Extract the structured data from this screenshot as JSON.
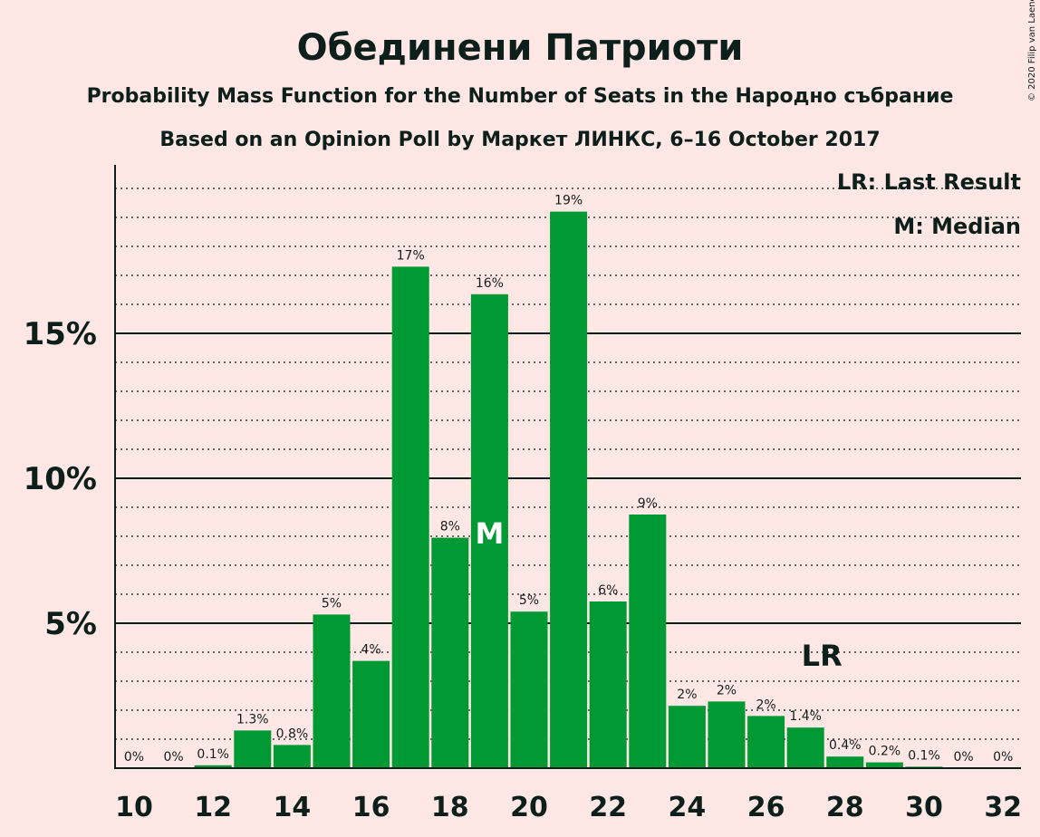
{
  "colors": {
    "background": "#FFE7E6",
    "bar": "#009933",
    "text": "#0d1f1a"
  },
  "chart_data": {
    "type": "bar",
    "title": "Обединени Патриоти",
    "subtitle": "Probability Mass Function for the Number of Seats in the Народно събрание",
    "subtitle2": "Based on an Opinion Poll by Маркет ЛИНКС, 6–16 October 2017",
    "copyright": "© 2020 Filip van Laenen",
    "x": [
      10,
      11,
      12,
      13,
      14,
      15,
      16,
      17,
      18,
      19,
      20,
      21,
      22,
      23,
      24,
      25,
      26,
      27,
      28,
      29,
      30,
      31,
      32
    ],
    "values": [
      0,
      0,
      0.1,
      1.3,
      0.8,
      5.3,
      3.7,
      17.3,
      7.95,
      16.35,
      5.4,
      19.2,
      5.75,
      8.75,
      2.15,
      2.3,
      1.8,
      1.4,
      0.4,
      0.2,
      0.05,
      0,
      0
    ],
    "labels": [
      "0%",
      "0%",
      "0.1%",
      "1.3%",
      "0.8%",
      "5%",
      "4%",
      "17%",
      "8%",
      "16%",
      "5%",
      "19%",
      "6%",
      "9%",
      "2%",
      "2%",
      "2%",
      "1.4%",
      "0.4%",
      "0.2%",
      "0.1%",
      "0%",
      "0%"
    ],
    "x_ticks": [
      10,
      12,
      14,
      16,
      18,
      20,
      22,
      24,
      26,
      28,
      30,
      32
    ],
    "y_ticks": [
      {
        "value": 5,
        "label": "5%"
      },
      {
        "value": 10,
        "label": "10%"
      },
      {
        "value": 15,
        "label": "15%"
      }
    ],
    "ylim": [
      0,
      20.8
    ],
    "minor_grid_step": 1,
    "median_seat": 19,
    "median_marker": "M",
    "last_result_seat": 27,
    "last_result_marker": "LR",
    "legend": [
      {
        "text": "LR: Last Result"
      },
      {
        "text": "M: Median"
      }
    ],
    "legend_position": "top-right"
  }
}
